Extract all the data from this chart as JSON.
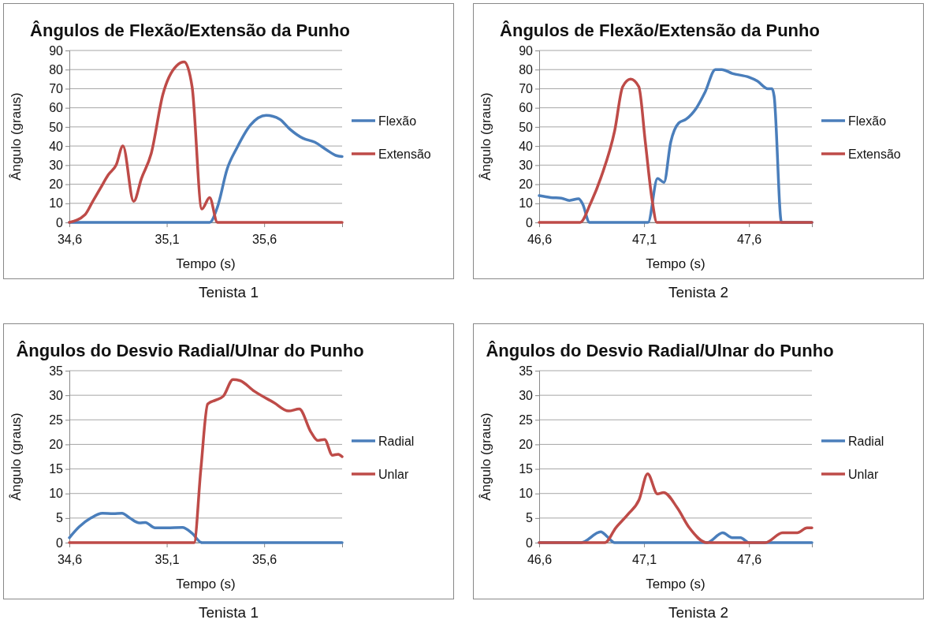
{
  "chart_data": [
    {
      "type": "line",
      "title": "Ângulos de Flexão/Extensão da Punho",
      "xlabel": "Tempo (s)",
      "ylabel": "Ângulo (graus)",
      "xlim": [
        34.6,
        36.0
      ],
      "xticks": [
        {
          "value": 34.6,
          "label": "34,6"
        },
        {
          "value": 35.1,
          "label": "35,1"
        },
        {
          "value": 35.6,
          "label": "35,6"
        }
      ],
      "ylim": [
        0,
        90
      ],
      "yticks": [
        0,
        10,
        20,
        30,
        40,
        50,
        60,
        70,
        80,
        90
      ],
      "grid": "y",
      "legend": "right",
      "marker": "none",
      "line_style": "solid",
      "annotations": [
        "Tenista 1"
      ],
      "series": [
        {
          "name": "Flexão",
          "color": "#4a7ebb",
          "x": [
            34.6,
            35.32,
            35.36,
            35.41,
            35.46,
            35.53,
            35.61,
            35.68,
            35.73,
            35.8,
            35.86,
            35.92,
            35.97,
            36.0
          ],
          "values": [
            0,
            0,
            8,
            28,
            39,
            51,
            56,
            54,
            49,
            44,
            42,
            38,
            35,
            34.5
          ]
        },
        {
          "name": "Extensão",
          "color": "#be4b48",
          "x": [
            34.6,
            34.68,
            34.72,
            34.76,
            34.8,
            34.84,
            34.875,
            34.93,
            34.97,
            35.02,
            35.08,
            35.15,
            35.19,
            35.23,
            35.28,
            35.32,
            35.36,
            36.0
          ],
          "values": [
            0,
            4,
            11,
            18,
            25,
            30,
            40,
            11,
            23,
            36,
            67,
            82,
            84,
            71,
            7,
            13,
            0,
            0
          ]
        }
      ]
    },
    {
      "type": "line",
      "title": "Ângulos de Flexão/Extensão da Punho",
      "xlabel": "Tempo (s)",
      "ylabel": "Ângulo (graus)",
      "xlim": [
        46.6,
        47.9
      ],
      "xticks": [
        {
          "value": 46.6,
          "label": "46,6"
        },
        {
          "value": 47.1,
          "label": "47,1"
        },
        {
          "value": 47.6,
          "label": "47,6"
        }
      ],
      "ylim": [
        0,
        90
      ],
      "yticks": [
        0,
        10,
        20,
        30,
        40,
        50,
        60,
        70,
        80,
        90
      ],
      "grid": "y",
      "legend": "right",
      "marker": "none",
      "line_style": "solid",
      "annotations": [
        "Tenista 2"
      ],
      "series": [
        {
          "name": "Flexão",
          "color": "#4a7ebb",
          "x": [
            46.6,
            46.655,
            46.705,
            46.744,
            46.788,
            46.807,
            46.84,
            47.087,
            47.119,
            47.164,
            47.195,
            47.227,
            47.265,
            47.3,
            47.35,
            47.39,
            47.44,
            47.47,
            47.52,
            47.6,
            47.64,
            47.69,
            47.71,
            47.72,
            47.755,
            47.9
          ],
          "values": [
            14,
            13,
            12.7,
            11.5,
            12.4,
            9.7,
            0,
            0,
            0,
            23,
            21,
            42,
            52,
            54,
            60,
            68,
            80,
            80,
            78,
            76,
            74,
            70,
            70,
            66,
            0,
            0
          ]
        },
        {
          "name": "Extensão",
          "color": "#be4b48",
          "x": [
            46.6,
            46.795,
            46.845,
            46.896,
            46.96,
            46.998,
            47.036,
            47.075,
            47.106,
            47.138,
            47.161,
            47.9
          ],
          "values": [
            0,
            0,
            10,
            24,
            48,
            71,
            75,
            71,
            42,
            12,
            0,
            0
          ]
        }
      ]
    },
    {
      "type": "line",
      "title": "Ângulos do Desvio Radial/Ulnar do Punho",
      "xlabel": "Tempo (s)",
      "ylabel": "Ângulo (graus)",
      "xlim": [
        34.6,
        36.0
      ],
      "xticks": [
        {
          "value": 34.6,
          "label": "34,6"
        },
        {
          "value": 35.1,
          "label": "35,1"
        },
        {
          "value": 35.6,
          "label": "35,6"
        }
      ],
      "ylim": [
        0,
        35
      ],
      "yticks": [
        0,
        5,
        10,
        15,
        20,
        25,
        30,
        35
      ],
      "grid": "y",
      "legend": "right",
      "marker": "none",
      "line_style": "solid",
      "annotations": [
        "Tenista 1"
      ],
      "series": [
        {
          "name": "Radial",
          "color": "#4a7ebb",
          "x": [
            34.6,
            34.65,
            34.71,
            34.77,
            34.825,
            34.87,
            34.91,
            34.96,
            34.99,
            35.04,
            35.1,
            35.18,
            35.23,
            35.28,
            36.0
          ],
          "values": [
            1,
            3.2,
            5,
            6,
            5.9,
            6,
            5,
            4,
            4.1,
            3,
            3,
            3.1,
            1.9,
            0,
            0
          ]
        },
        {
          "name": "Unlar",
          "color": "#be4b48",
          "x": [
            34.6,
            35.24,
            35.275,
            35.31,
            35.35,
            35.39,
            35.44,
            35.475,
            35.55,
            35.65,
            35.725,
            35.78,
            35.84,
            35.875,
            35.91,
            35.95,
            35.98,
            36.0
          ],
          "values": [
            0,
            0,
            15,
            28.2,
            29,
            29.8,
            33.2,
            33,
            30.8,
            28.5,
            26.8,
            27.2,
            22.5,
            20.8,
            21,
            17.8,
            18,
            17.5
          ]
        }
      ]
    },
    {
      "type": "line",
      "title": "Ângulos do Desvio Radial/Ulnar do Punho",
      "xlabel": "Tempo (s)",
      "ylabel": "Ângulo (graus)",
      "xlim": [
        46.6,
        47.9
      ],
      "xticks": [
        {
          "value": 46.6,
          "label": "46,6"
        },
        {
          "value": 47.1,
          "label": "47,1"
        },
        {
          "value": 47.6,
          "label": "47,6"
        }
      ],
      "ylim": [
        0,
        35
      ],
      "yticks": [
        0,
        5,
        10,
        15,
        20,
        25,
        30,
        35
      ],
      "grid": "y",
      "legend": "right",
      "marker": "none",
      "line_style": "solid",
      "annotations": [
        "Tenista 2"
      ],
      "series": [
        {
          "name": "Radial",
          "color": "#4a7ebb",
          "x": [
            46.6,
            46.8,
            46.894,
            46.92,
            46.96,
            47.4,
            47.475,
            47.52,
            47.56,
            47.6,
            47.9
          ],
          "values": [
            0,
            0,
            2.2,
            1.4,
            0,
            0,
            2,
            1,
            1,
            0,
            0
          ]
        },
        {
          "name": "Unlar",
          "color": "#be4b48",
          "x": [
            46.6,
            46.913,
            46.965,
            47.024,
            47.076,
            47.117,
            47.164,
            47.193,
            47.258,
            47.316,
            47.4,
            47.678,
            47.76,
            47.83,
            47.877,
            47.9
          ],
          "values": [
            0,
            0,
            3,
            5.8,
            8.7,
            14,
            9.9,
            10.2,
            7.1,
            3,
            0,
            0,
            2,
            2,
            3,
            3
          ]
        }
      ]
    }
  ]
}
